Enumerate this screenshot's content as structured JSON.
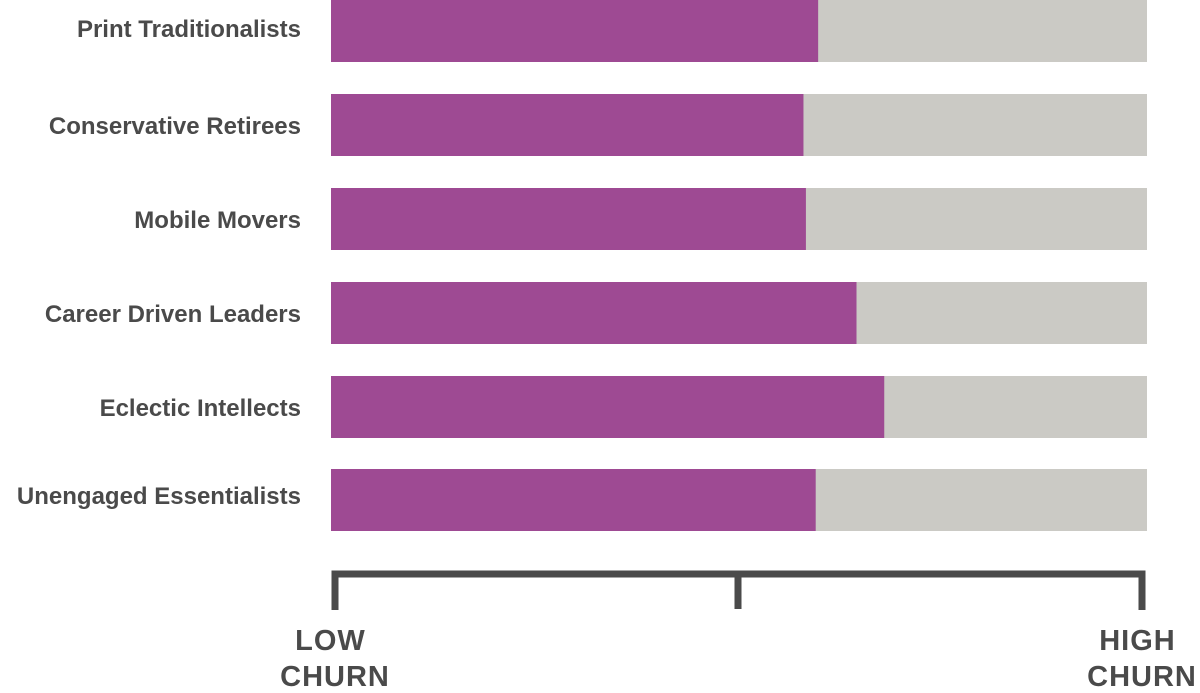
{
  "chart_data": {
    "type": "bar",
    "orientation": "horizontal",
    "stacked_with_remainder": true,
    "categories": [
      "Print Traditionalists",
      "Conservative Retirees",
      "Mobile Movers",
      "Career Driven Leaders",
      "Eclectic Intellects",
      "Unengaged Essentialists"
    ],
    "values": [
      0.597,
      0.579,
      0.582,
      0.644,
      0.678,
      0.594
    ],
    "xlim": [
      0,
      1
    ],
    "axis_labels": {
      "low": [
        "LOW",
        "CHURN"
      ],
      "high": [
        "HIGH",
        "CHURN"
      ]
    },
    "grid": false,
    "legend": "none"
  },
  "colors": {
    "bar_fill": "#9e4a93",
    "bar_track": "#cbcac5",
    "text": "#4a4a4a",
    "axis": "#4a4a4a"
  }
}
